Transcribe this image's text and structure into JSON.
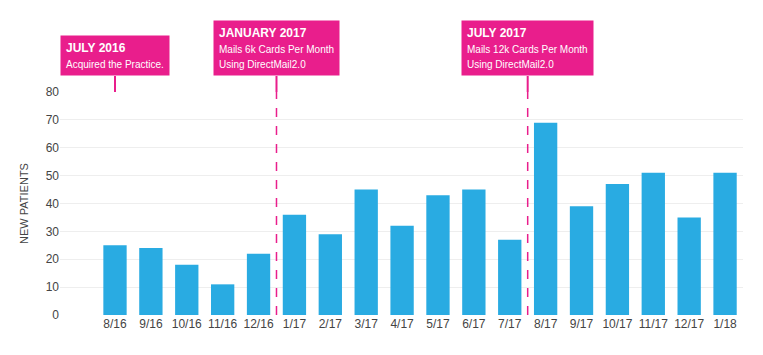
{
  "chart_data": {
    "type": "bar",
    "categories": [
      "8/16",
      "9/16",
      "10/16",
      "11/16",
      "12/16",
      "1/17",
      "2/17",
      "3/17",
      "4/17",
      "5/17",
      "6/17",
      "7/17",
      "8/17",
      "9/17",
      "10/17",
      "11/17",
      "12/17",
      "1/18"
    ],
    "values": [
      25,
      24,
      18,
      11,
      22,
      36,
      29,
      45,
      32,
      43,
      45,
      27,
      69,
      39,
      47,
      51,
      35,
      51
    ],
    "color": "#29ABE2",
    "ylabel": "NEW PATIENTS",
    "ylim": [
      0,
      80
    ],
    "yticks": [
      0,
      10,
      20,
      30,
      40,
      50,
      60,
      70,
      80
    ],
    "grid": true,
    "vlines": {
      "x": [
        4.5,
        11.5
      ],
      "color": "#E91E8C"
    },
    "annotations": [
      {
        "title": "JULY 2016",
        "text": "Acquired the Practice.",
        "x": 0,
        "color": "#E91E8C"
      },
      {
        "title": "JANUARY 2017",
        "text": "Mails 6k Cards Per Month\nUsing DirectMail2.0",
        "x": 4.5,
        "color": "#E91E8C"
      },
      {
        "title": "JULY 2017",
        "text": "Mails 12k Cards Per Month\nUsing DirectMail2.0",
        "x": 11.5,
        "color": "#E91E8C"
      }
    ]
  }
}
